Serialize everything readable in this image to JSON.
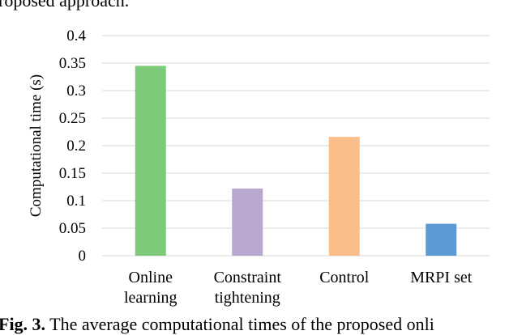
{
  "captions": {
    "top": "roposed approach.",
    "bottom_prefix": "Fig. 3.",
    "bottom_text": " The average computational times of the proposed onli"
  },
  "chart_data": {
    "type": "bar",
    "categories": [
      [
        "Online",
        "learning"
      ],
      [
        "Constraint",
        "tightening"
      ],
      [
        "Control"
      ],
      [
        "MRPI set"
      ]
    ],
    "values": [
      0.345,
      0.122,
      0.216,
      0.058
    ],
    "colors": [
      "#7dca7a",
      "#b9a7d1",
      "#fbbe8b",
      "#5b9bd5"
    ],
    "xlabel": "",
    "ylabel": "Computational time (s)",
    "ylim": [
      0,
      0.4
    ],
    "yticks": [
      0,
      0.05,
      0.1,
      0.15,
      0.2,
      0.25,
      0.3,
      0.35,
      0.4
    ],
    "ytick_labels": [
      "0",
      "0.05",
      "0.1",
      "0.15",
      "0.2",
      "0.25",
      "0.3",
      "0.35",
      "0.4"
    ],
    "grid": true,
    "legend": "none",
    "grid_color": "#d9d9d9"
  }
}
